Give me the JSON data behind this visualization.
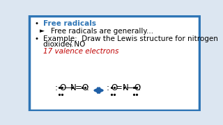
{
  "bg_color": "#dce6f1",
  "border_color": "#2e75b6",
  "bullet_color": "#000000",
  "free_radicals_color": "#2e75b6",
  "valence_color": "#c00000",
  "arrow_color": "#1f5fa6",
  "text_color": "#000000",
  "bullet1_label": "Free radicals",
  "bullet1_sub": "Free radicals are generally...",
  "bullet2_text1": "Example:  Draw the Lewis structure for nitrogen",
  "bullet2_text2": "dioxide, NO",
  "valence_text": "17 valence electrons",
  "fontsize_main": 7.5,
  "fontsize_lewis": 8.5
}
